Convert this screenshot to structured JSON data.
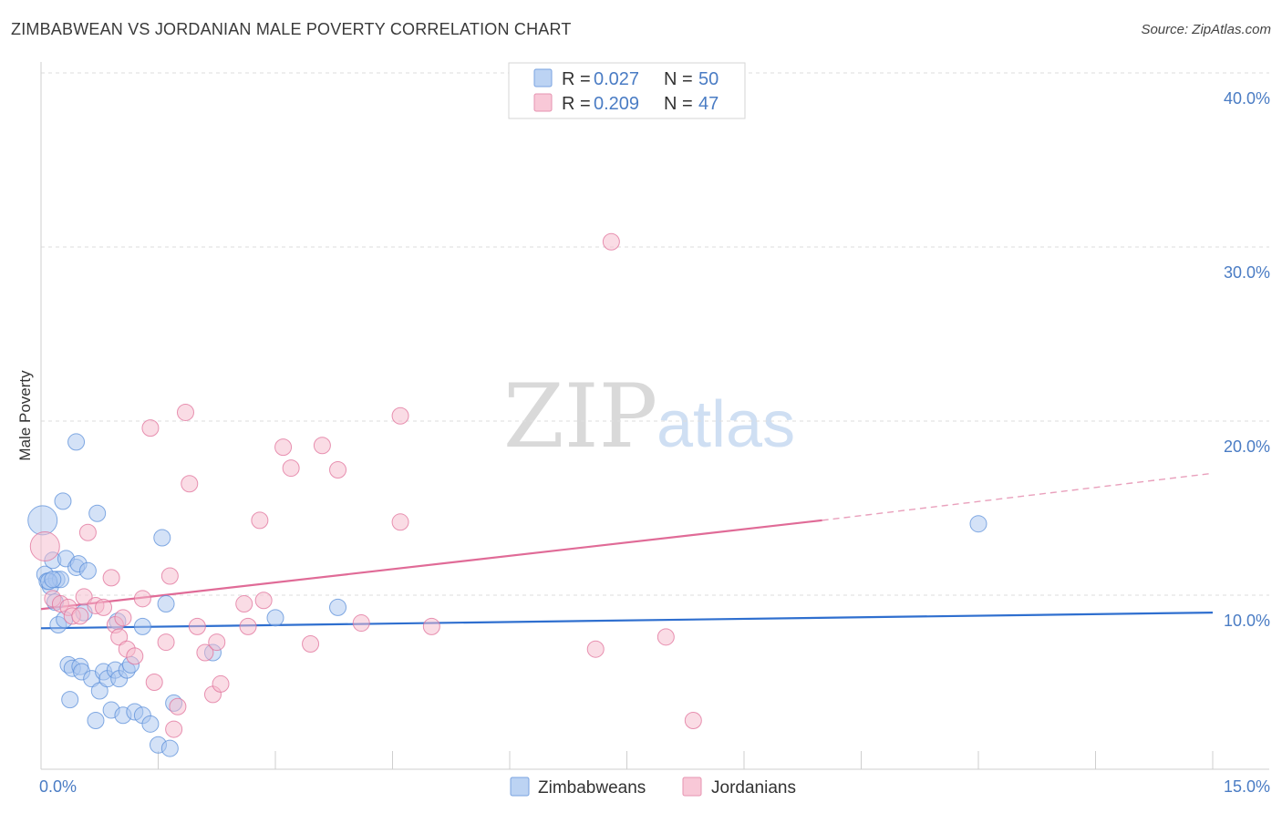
{
  "header": {
    "title": "ZIMBABWEAN VS JORDANIAN MALE POVERTY CORRELATION CHART",
    "source": "Source: ZipAtlas.com"
  },
  "colors": {
    "zimbabweans": "#5b8fd9",
    "zimbabweans_fill": "#a9c6ef",
    "jordanians": "#e0709a",
    "jordanians_fill": "#f5b9cc",
    "tick_label": "#4a7cc4"
  },
  "legend_top": {
    "r_label": "R =",
    "n_label": "N =",
    "zimbabweans": {
      "r": "0.027",
      "n": "50"
    },
    "jordanians": {
      "r": "0.209",
      "n": "47"
    }
  },
  "legend_bottom": {
    "zimbabweans": "Zimbabweans",
    "jordanians": "Jordanians"
  },
  "watermark": {
    "zip": "ZIP",
    "atlas": "atlas"
  },
  "chart_data": {
    "type": "scatter",
    "title": "ZIMBABWEAN VS JORDANIAN MALE POVERTY CORRELATION CHART",
    "xlabel": "",
    "ylabel": "Male Poverty",
    "xlim": [
      0,
      15
    ],
    "ylim": [
      0,
      40
    ],
    "x_tick_labels": [
      "0.0%",
      "15.0%"
    ],
    "y_ticks": [
      10,
      20,
      30,
      40
    ],
    "y_tick_labels": [
      "10.0%",
      "20.0%",
      "30.0%",
      "40.0%"
    ],
    "grid": "horizontal dashed",
    "legend_position": "top-center",
    "series": [
      {
        "name": "Zimbabweans",
        "r": 0.027,
        "n": 50,
        "trend": {
          "x": [
            0,
            15
          ],
          "y": [
            8.1,
            9.0
          ]
        },
        "points": [
          [
            0.02,
            14.3
          ],
          [
            0.05,
            11.2
          ],
          [
            0.08,
            10.8
          ],
          [
            0.12,
            10.5
          ],
          [
            0.15,
            12.0
          ],
          [
            0.18,
            9.6
          ],
          [
            0.2,
            10.9
          ],
          [
            0.22,
            8.3
          ],
          [
            0.25,
            10.9
          ],
          [
            0.28,
            15.4
          ],
          [
            0.3,
            8.6
          ],
          [
            0.32,
            12.1
          ],
          [
            0.35,
            6.0
          ],
          [
            0.37,
            4.0
          ],
          [
            0.4,
            5.8
          ],
          [
            0.45,
            11.6
          ],
          [
            0.48,
            11.8
          ],
          [
            0.5,
            5.9
          ],
          [
            0.52,
            5.6
          ],
          [
            0.55,
            9.0
          ],
          [
            0.6,
            11.4
          ],
          [
            0.65,
            5.2
          ],
          [
            0.7,
            2.8
          ],
          [
            0.72,
            14.7
          ],
          [
            0.75,
            4.5
          ],
          [
            0.8,
            5.6
          ],
          [
            0.85,
            5.2
          ],
          [
            0.9,
            3.4
          ],
          [
            0.95,
            5.7
          ],
          [
            0.98,
            8.5
          ],
          [
            1.0,
            5.2
          ],
          [
            1.05,
            3.1
          ],
          [
            1.1,
            5.7
          ],
          [
            1.15,
            6.0
          ],
          [
            1.2,
            3.3
          ],
          [
            1.3,
            8.2
          ],
          [
            1.3,
            3.1
          ],
          [
            1.4,
            2.6
          ],
          [
            1.5,
            1.4
          ],
          [
            1.55,
            13.3
          ],
          [
            1.6,
            9.5
          ],
          [
            1.65,
            1.2
          ],
          [
            1.7,
            3.8
          ],
          [
            2.2,
            6.7
          ],
          [
            3.0,
            8.7
          ],
          [
            3.8,
            9.3
          ],
          [
            12.0,
            14.1
          ],
          [
            0.45,
            18.8
          ],
          [
            0.1,
            10.8
          ],
          [
            0.15,
            10.9
          ]
        ]
      },
      {
        "name": "Jordanians",
        "r": 0.209,
        "n": 47,
        "trend": {
          "x": [
            0,
            10.0
          ],
          "y": [
            9.2,
            14.3
          ],
          "dashed_to": [
            15,
            17.0
          ]
        },
        "points": [
          [
            0.05,
            12.8
          ],
          [
            0.15,
            9.8
          ],
          [
            0.25,
            9.5
          ],
          [
            0.35,
            9.3
          ],
          [
            0.4,
            8.8
          ],
          [
            0.5,
            8.8
          ],
          [
            0.55,
            9.9
          ],
          [
            0.6,
            13.6
          ],
          [
            0.7,
            9.4
          ],
          [
            0.8,
            9.3
          ],
          [
            0.9,
            11.0
          ],
          [
            0.95,
            8.3
          ],
          [
            1.0,
            7.6
          ],
          [
            1.05,
            8.7
          ],
          [
            1.1,
            6.9
          ],
          [
            1.2,
            6.5
          ],
          [
            1.3,
            9.8
          ],
          [
            1.4,
            19.6
          ],
          [
            1.45,
            5.0
          ],
          [
            1.6,
            7.3
          ],
          [
            1.65,
            11.1
          ],
          [
            1.7,
            2.3
          ],
          [
            1.75,
            3.6
          ],
          [
            1.85,
            20.5
          ],
          [
            1.9,
            16.4
          ],
          [
            2.0,
            8.2
          ],
          [
            2.1,
            6.7
          ],
          [
            2.2,
            4.3
          ],
          [
            2.25,
            7.3
          ],
          [
            2.3,
            4.9
          ],
          [
            2.6,
            9.5
          ],
          [
            2.65,
            8.2
          ],
          [
            2.8,
            14.3
          ],
          [
            2.85,
            9.7
          ],
          [
            3.1,
            18.5
          ],
          [
            3.2,
            17.3
          ],
          [
            3.45,
            7.2
          ],
          [
            3.6,
            18.6
          ],
          [
            3.8,
            17.2
          ],
          [
            4.1,
            8.4
          ],
          [
            4.6,
            20.3
          ],
          [
            4.6,
            14.2
          ],
          [
            5.0,
            8.2
          ],
          [
            7.1,
            6.9
          ],
          [
            7.3,
            30.3
          ],
          [
            8.0,
            7.6
          ],
          [
            8.35,
            2.8
          ]
        ]
      }
    ]
  }
}
